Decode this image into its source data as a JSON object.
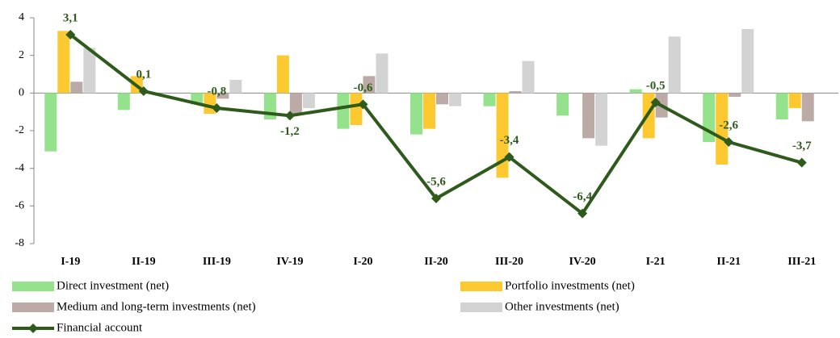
{
  "chart_data": {
    "type": "bar_line",
    "categories": [
      "I-19",
      "II-19",
      "III-19",
      "IV-19",
      "I-20",
      "II-20",
      "III-20",
      "IV-20",
      "I-21",
      "II-21",
      "III-21"
    ],
    "series": [
      {
        "name": "Direct investment (net)",
        "color": "#94e28c",
        "values": [
          -3.1,
          -0.9,
          -0.6,
          -1.4,
          -1.9,
          -2.2,
          -0.7,
          -1.2,
          0.2,
          -2.6,
          -1.4
        ]
      },
      {
        "name": "Portfolio investments (net)",
        "color": "#fcc930",
        "values": [
          3.3,
          0.9,
          -1.1,
          2.0,
          -1.7,
          -1.9,
          -4.5,
          0,
          -2.4,
          -3.8,
          -0.8
        ]
      },
      {
        "name": "Medium and long-term investments (net)",
        "color": "#bcaaa6",
        "values": [
          0.6,
          0,
          -0.3,
          -1.1,
          0.9,
          -0.6,
          0.1,
          -2.4,
          -1.3,
          -0.2,
          -1.5
        ]
      },
      {
        "name": "Other investments (net)",
        "color": "#d3d3d3",
        "values": [
          2.4,
          0,
          0.7,
          -0.8,
          2.1,
          -0.7,
          1.7,
          -2.8,
          3.0,
          3.4,
          0
        ]
      },
      {
        "name": "Financial account",
        "color": "#2e5a1c",
        "type": "line",
        "values": [
          3.1,
          0.1,
          -0.8,
          -1.2,
          -0.6,
          -5.6,
          -3.4,
          -6.4,
          -0.5,
          -2.6,
          -3.7
        ],
        "value_labels": [
          "3,1",
          "0,1",
          "-0,8",
          "-1,2",
          "-0,6",
          "-5,6",
          "-3,4",
          "-6,4",
          "-0,5",
          "-2,6",
          "-3,7"
        ]
      }
    ],
    "ylim": [
      -8,
      4
    ],
    "yticks": [
      -8,
      -6,
      -4,
      -2,
      0,
      2,
      4
    ]
  }
}
